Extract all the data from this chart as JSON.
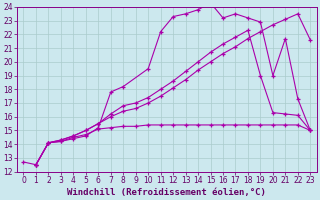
{
  "xlabel": "Windchill (Refroidissement éolien,°C)",
  "xlim": [
    -0.5,
    23.5
  ],
  "ylim": [
    12,
    24
  ],
  "xticks": [
    0,
    1,
    2,
    3,
    4,
    5,
    6,
    7,
    8,
    9,
    10,
    11,
    12,
    13,
    14,
    15,
    16,
    17,
    18,
    19,
    20,
    21,
    22,
    23
  ],
  "yticks": [
    12,
    13,
    14,
    15,
    16,
    17,
    18,
    19,
    20,
    21,
    22,
    23,
    24
  ],
  "background_color": "#cce8ee",
  "grid_color": "#aacccc",
  "line_color": "#aa00aa",
  "line1_x": [
    0,
    1,
    2,
    3,
    4,
    5,
    6,
    7,
    8,
    10,
    11,
    12,
    13,
    14,
    15,
    16,
    17,
    18,
    19,
    20,
    21,
    22,
    23
  ],
  "line1_y": [
    12.7,
    12.5,
    14.1,
    14.2,
    14.4,
    14.6,
    15.2,
    17.8,
    18.2,
    19.5,
    22.2,
    23.3,
    23.5,
    23.8,
    24.3,
    23.2,
    23.5,
    23.2,
    22.9,
    19.0,
    21.7,
    17.3,
    15.0
  ],
  "line2_x": [
    1,
    2,
    3,
    4,
    5,
    6,
    7,
    8,
    9,
    10,
    11,
    12,
    13,
    14,
    15,
    16,
    17,
    18,
    19,
    20,
    21,
    22,
    23
  ],
  "line2_y": [
    12.5,
    14.1,
    14.3,
    14.6,
    15.0,
    15.5,
    16.2,
    16.8,
    17.0,
    17.4,
    18.0,
    18.6,
    19.3,
    20.0,
    20.7,
    21.3,
    21.8,
    22.3,
    19.0,
    16.3,
    16.2,
    16.1,
    15.0
  ],
  "line3_x": [
    1,
    2,
    3,
    4,
    5,
    6,
    7,
    8,
    9,
    10,
    11,
    12,
    13,
    14,
    15,
    16,
    17,
    18,
    19,
    20,
    21,
    22,
    23
  ],
  "line3_y": [
    12.5,
    14.1,
    14.3,
    14.6,
    15.0,
    15.5,
    16.0,
    16.4,
    16.6,
    17.0,
    17.5,
    18.1,
    18.7,
    19.4,
    20.0,
    20.6,
    21.1,
    21.7,
    22.2,
    22.7,
    23.1,
    23.5,
    21.6
  ],
  "line4_x": [
    1,
    2,
    3,
    4,
    5,
    6,
    7,
    8,
    9,
    10,
    11,
    12,
    13,
    14,
    15,
    16,
    17,
    18,
    19,
    20,
    21,
    22,
    23
  ],
  "line4_y": [
    12.5,
    14.1,
    14.2,
    14.5,
    14.7,
    15.1,
    15.2,
    15.3,
    15.3,
    15.4,
    15.4,
    15.4,
    15.4,
    15.4,
    15.4,
    15.4,
    15.4,
    15.4,
    15.4,
    15.4,
    15.4,
    15.4,
    15.0
  ],
  "tick_fontsize": 5.5,
  "label_fontsize": 6.5
}
